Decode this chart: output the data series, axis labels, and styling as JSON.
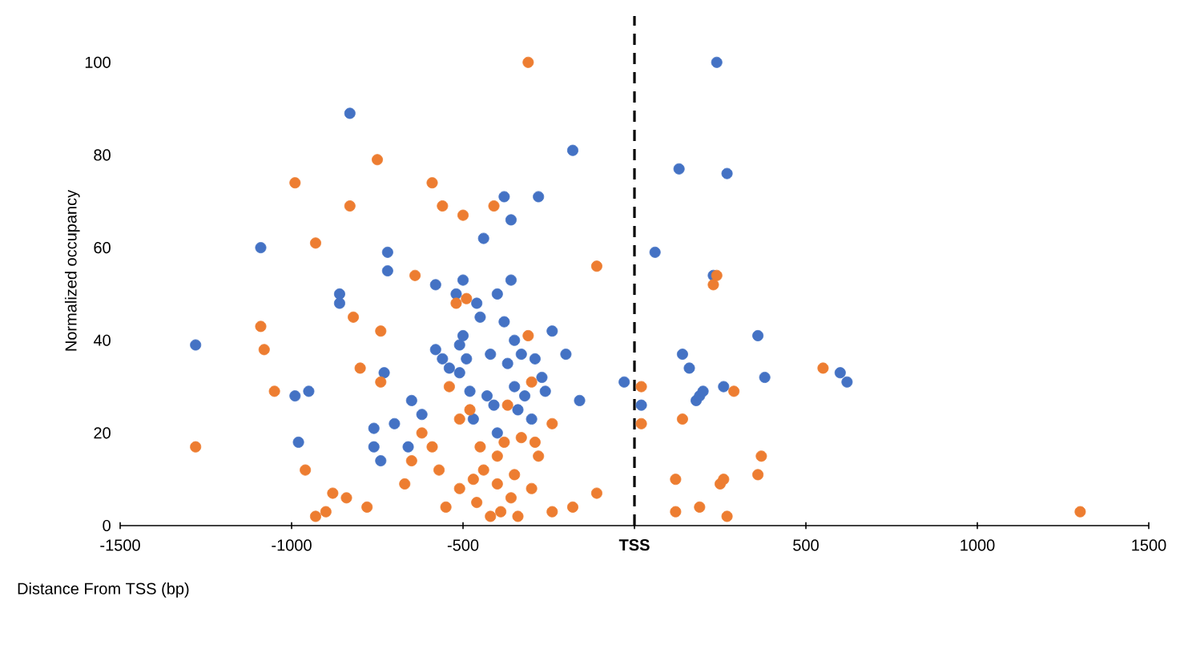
{
  "chart_data": {
    "type": "scatter",
    "xlabel": "Distance From TSS (bp)",
    "ylabel": "Normalized occupancy",
    "marker": "circle",
    "xlim": [
      -1500,
      1500
    ],
    "ylim": [
      0,
      110
    ],
    "xticks": [
      -1500,
      -1000,
      -500,
      {
        "value": 0,
        "label": null
      },
      500,
      1000,
      1500
    ],
    "yticks": [
      0,
      20,
      40,
      60,
      80,
      100
    ],
    "ref_lines": [
      {
        "axis": "x",
        "value": 0,
        "label": "**TSS**",
        "line_style": "dashed",
        "color": "#000000"
      }
    ],
    "series": [
      {
        "color": "#4472c4",
        "x": [
          -1280,
          -1090,
          -990,
          -980,
          -950,
          -830,
          -860,
          -860,
          -760,
          -760,
          -740,
          -730,
          -720,
          -720,
          -700,
          -660,
          -650,
          -620,
          -580,
          -580,
          -560,
          -540,
          -520,
          -510,
          -510,
          -500,
          -500,
          -490,
          -480,
          -470,
          -460,
          -450,
          -440,
          -430,
          -420,
          -410,
          -400,
          -400,
          -380,
          -380,
          -370,
          -360,
          -360,
          -350,
          -350,
          -340,
          -330,
          -320,
          -300,
          -290,
          -280,
          -270,
          -260,
          -240,
          -200,
          -180,
          -160,
          -30,
          20,
          60,
          130,
          140,
          160,
          180,
          190,
          200,
          240,
          230,
          260,
          270,
          360,
          380,
          600,
          620
        ],
        "values": [
          39,
          60,
          28,
          18,
          29,
          89,
          50,
          48,
          21,
          17,
          14,
          33,
          59,
          55,
          22,
          17,
          27,
          24,
          52,
          38,
          36,
          34,
          50,
          39,
          33,
          53,
          41,
          36,
          29,
          23,
          48,
          45,
          62,
          28,
          37,
          26,
          50,
          20,
          71,
          44,
          35,
          66,
          53,
          40,
          30,
          25,
          37,
          28,
          23,
          36,
          71,
          32,
          29,
          42,
          37,
          81,
          27,
          31,
          26,
          59,
          77,
          37,
          34,
          27,
          28,
          29,
          100,
          54,
          30,
          76,
          41,
          32,
          33,
          31
        ]
      },
      {
        "color": "#ed7d31",
        "x": [
          -1280,
          -1090,
          -1080,
          -1050,
          -990,
          -960,
          -930,
          -930,
          -900,
          -880,
          -840,
          -830,
          -820,
          -800,
          -780,
          -750,
          -740,
          -740,
          -670,
          -650,
          -640,
          -620,
          -590,
          -590,
          -570,
          -560,
          -550,
          -540,
          -520,
          -510,
          -510,
          -500,
          -490,
          -480,
          -470,
          -460,
          -450,
          -440,
          -420,
          -410,
          -400,
          -400,
          -390,
          -380,
          -370,
          -360,
          -350,
          -340,
          -330,
          -310,
          -310,
          -300,
          -300,
          -290,
          -280,
          -240,
          -240,
          -180,
          -110,
          -110,
          20,
          20,
          120,
          120,
          140,
          190,
          230,
          240,
          250,
          260,
          270,
          290,
          360,
          370,
          550,
          1300
        ],
        "values": [
          17,
          43,
          38,
          29,
          74,
          12,
          61,
          2,
          3,
          7,
          6,
          69,
          45,
          34,
          4,
          79,
          31,
          42,
          9,
          14,
          54,
          20,
          74,
          17,
          12,
          69,
          4,
          30,
          48,
          8,
          23,
          67,
          49,
          25,
          10,
          5,
          17,
          12,
          2,
          69,
          15,
          9,
          3,
          18,
          26,
          6,
          11,
          2,
          19,
          100,
          41,
          31,
          8,
          18,
          15,
          22,
          3,
          4,
          56,
          7,
          30,
          22,
          10,
          3,
          23,
          4,
          52,
          54,
          9,
          10,
          2,
          29,
          11,
          15,
          34,
          3
        ]
      }
    ]
  }
}
